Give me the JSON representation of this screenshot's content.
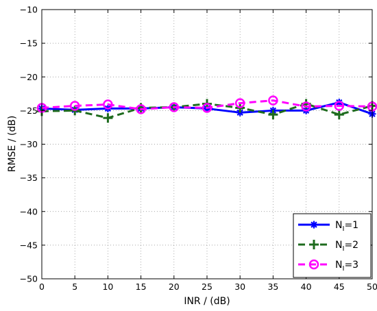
{
  "chart_data": {
    "type": "line",
    "title": "",
    "xlabel": "INR / (dB)",
    "ylabel": "RMSE / (dB)",
    "xlim": [
      0,
      50
    ],
    "ylim": [
      -50,
      -10
    ],
    "xticks": [
      0,
      5,
      10,
      15,
      20,
      25,
      30,
      35,
      40,
      45,
      50
    ],
    "yticks": [
      -10,
      -15,
      -20,
      -25,
      -30,
      -35,
      -40,
      -45,
      -50
    ],
    "grid": true,
    "legend_position": "bottom-right",
    "x": [
      0,
      5,
      10,
      15,
      20,
      25,
      30,
      35,
      40,
      45,
      50
    ],
    "series": [
      {
        "name": "N_I=1",
        "legend_base": "N",
        "legend_sub": "I",
        "legend_suffix": "=1",
        "color": "#0000ff",
        "line_style": "solid",
        "marker": "asterisk",
        "values": [
          -24.7,
          -24.9,
          -24.7,
          -24.7,
          -24.5,
          -24.7,
          -25.3,
          -25.0,
          -25.0,
          -23.8,
          -25.5
        ]
      },
      {
        "name": "N_I=2",
        "legend_base": "N",
        "legend_sub": "I",
        "legend_suffix": "=2",
        "color": "#1e6b1e",
        "line_style": "dashed",
        "marker": "plus",
        "values": [
          -25.1,
          -25.0,
          -26.1,
          -24.6,
          -24.5,
          -24.0,
          -24.6,
          -25.6,
          -24.0,
          -25.6,
          -24.3
        ]
      },
      {
        "name": "N_I=3",
        "legend_base": "N",
        "legend_sub": "I",
        "legend_suffix": "=3",
        "color": "#ff00ff",
        "line_style": "dashed",
        "marker": "circle",
        "values": [
          -24.6,
          -24.3,
          -24.1,
          -24.8,
          -24.5,
          -24.6,
          -23.9,
          -23.5,
          -24.4,
          -24.3,
          -24.4
        ]
      }
    ]
  }
}
